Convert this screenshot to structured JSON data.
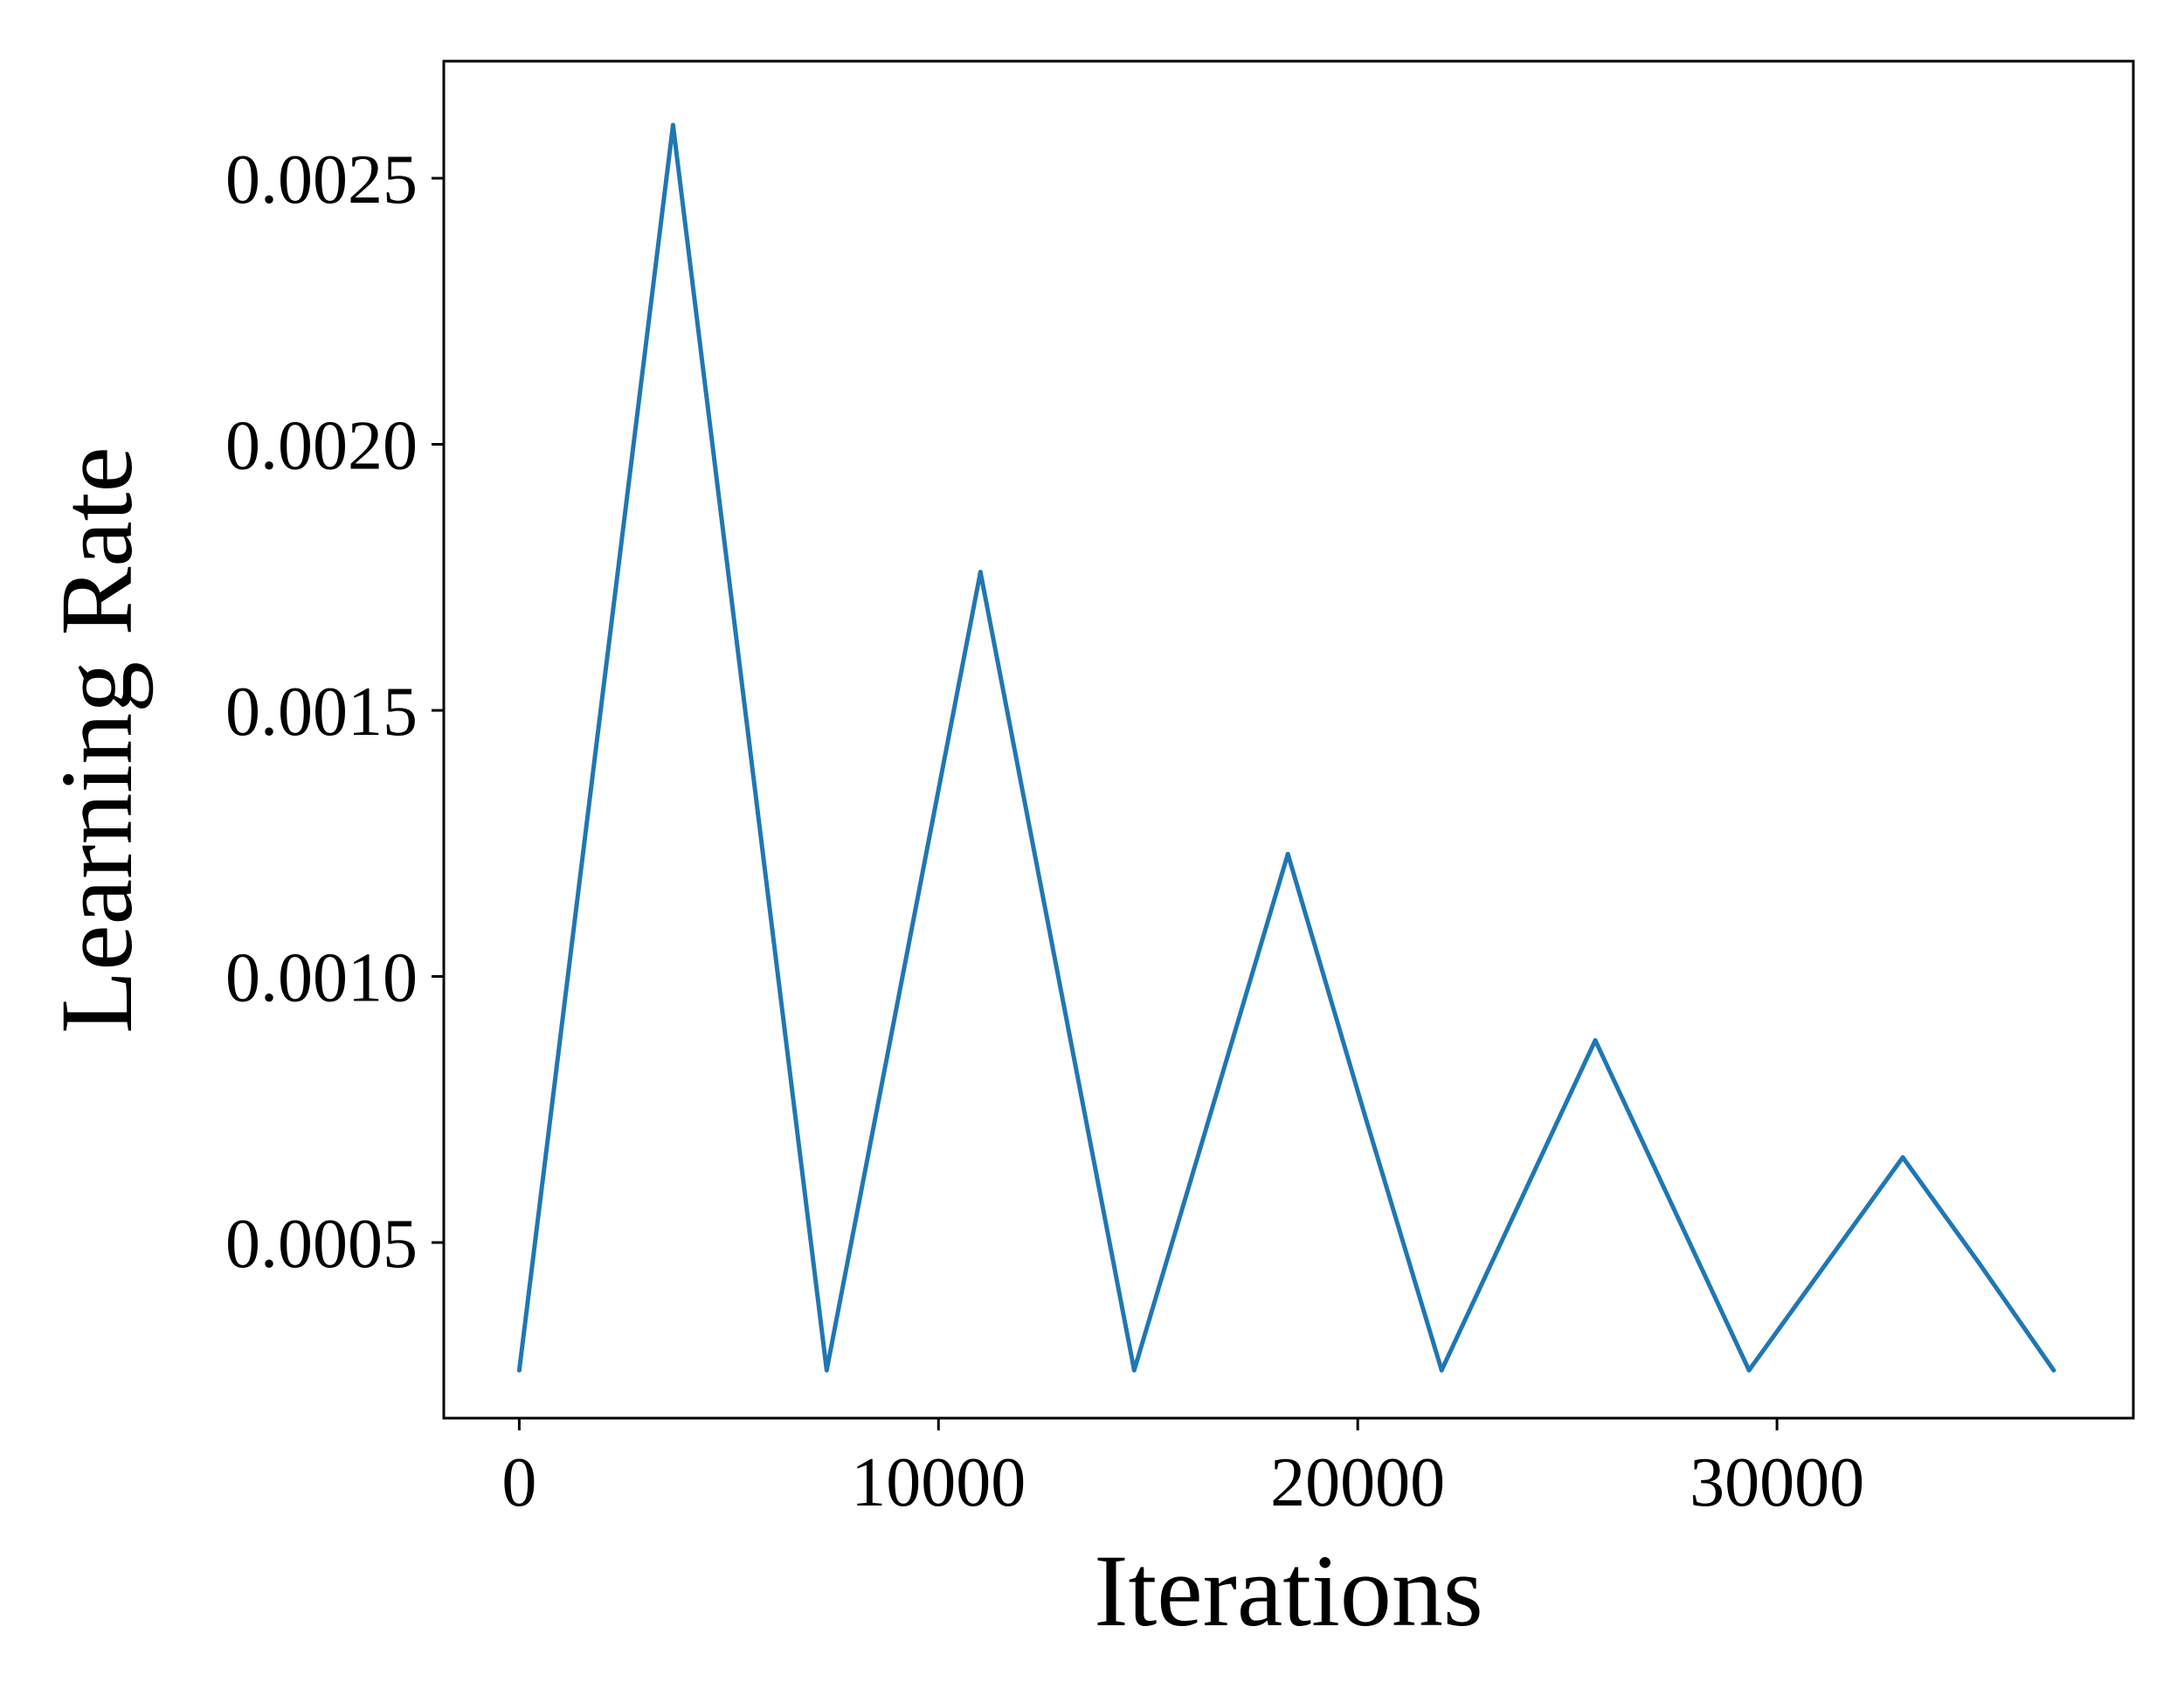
{
  "chart_data": {
    "type": "line",
    "title": "",
    "xlabel": "Iterations",
    "ylabel": "Learning Rate",
    "xlim": [
      -1800,
      38500
    ],
    "ylim": [
      0.00017,
      0.00272
    ],
    "xticks": [
      0,
      10000,
      20000,
      30000
    ],
    "xtick_labels": [
      "0",
      "10000",
      "20000",
      "30000"
    ],
    "yticks": [
      0.0005,
      0.001,
      0.0015,
      0.002,
      0.0025
    ],
    "ytick_labels": [
      "0.0005",
      "0.0010",
      "0.0015",
      "0.0020",
      "0.0025"
    ],
    "grid": false,
    "legend": "none",
    "series": [
      {
        "color": "#1f77b4",
        "x": [
          0,
          1833,
          3667,
          5500,
          7333,
          9167,
          11000,
          12833,
          14667,
          16500,
          18333,
          20167,
          22000,
          23833,
          25667,
          27500,
          29333,
          31167,
          33000,
          34833,
          36600
        ],
        "y": [
          0.00026,
          0.00143,
          0.0026,
          0.00143,
          0.00026,
          0.00101,
          0.00176,
          0.00101,
          0.00026,
          0.000745,
          0.00123,
          0.00074,
          0.00026,
          0.00057,
          0.00088,
          0.00057,
          0.00026,
          0.00046,
          0.00066,
          0.00046,
          0.00026
        ]
      }
    ]
  }
}
